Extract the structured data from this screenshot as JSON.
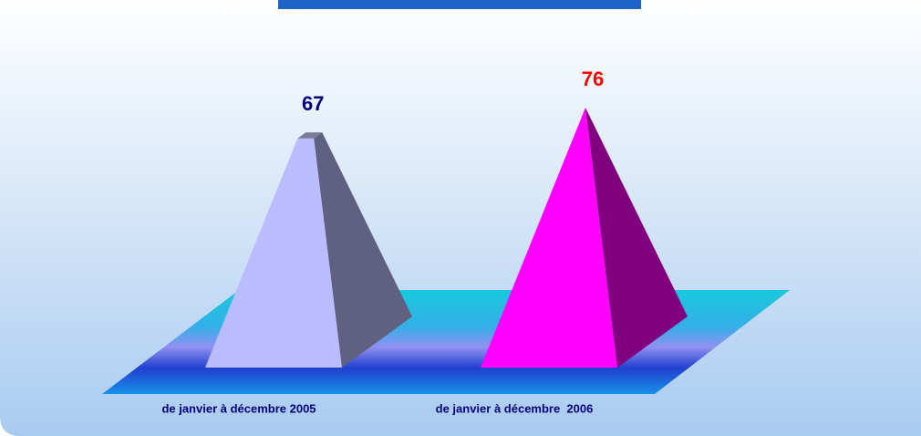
{
  "chart_data": {
    "type": "pyramid",
    "categories": [
      "de janvier à décembre 2005",
      "de janvier à décembre  2006"
    ],
    "values": [
      67,
      76
    ],
    "colors": [
      "#bbbbff",
      "#ff00ff"
    ],
    "side_colors": [
      "#606080",
      "#800080"
    ],
    "label_colors": [
      "#000080",
      "#ff0000"
    ]
  }
}
